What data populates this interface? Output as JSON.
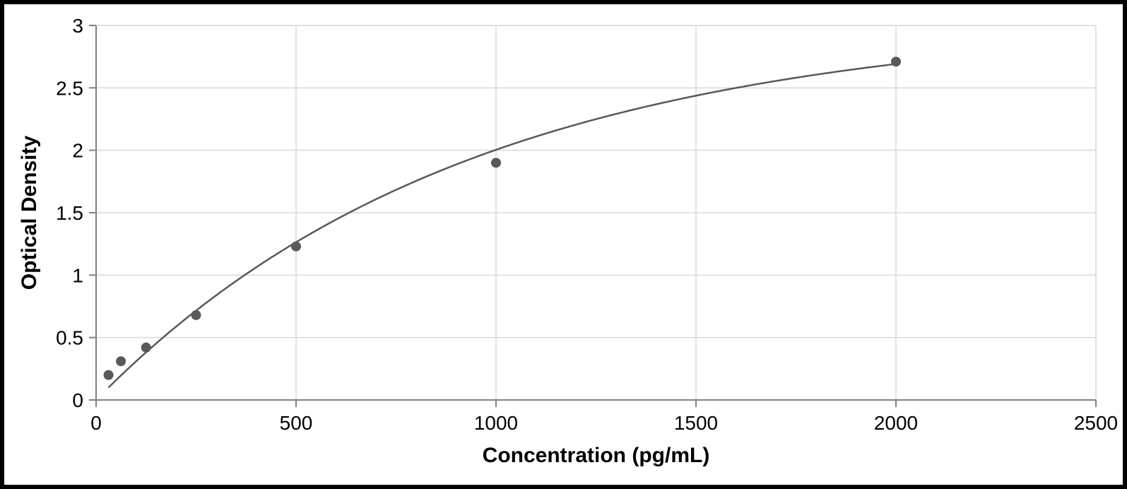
{
  "chart": {
    "type": "scatter-with-curve",
    "ylabel": "Optical Density",
    "xlabel": "Concentration (pg/mL)",
    "label_fontsize": 30,
    "label_fontweight": "bold",
    "label_color": "#000000",
    "tick_fontsize": 28,
    "tick_color": "#000000",
    "xlim": [
      0,
      2500
    ],
    "ylim": [
      0,
      3
    ],
    "xtick_step": 500,
    "ytick_step": 0.5,
    "xticks": [
      0,
      500,
      1000,
      1500,
      2000,
      2500
    ],
    "yticks": [
      0,
      0.5,
      1,
      1.5,
      2,
      2.5,
      3
    ],
    "background_color": "#ffffff",
    "grid_color": "#d9d9d9",
    "grid_width": 1.5,
    "axis_color": "#808080",
    "axis_width": 2,
    "marker_color": "#595959",
    "marker_radius": 7,
    "line_color": "#595959",
    "line_width": 2.5,
    "points": [
      {
        "x": 31,
        "y": 0.2
      },
      {
        "x": 62,
        "y": 0.31
      },
      {
        "x": 125,
        "y": 0.42
      },
      {
        "x": 250,
        "y": 0.68
      },
      {
        "x": 500,
        "y": 1.23
      },
      {
        "x": 1000,
        "y": 1.9
      },
      {
        "x": 2000,
        "y": 2.71
      }
    ],
    "curve_saturation_a": 3.05,
    "curve_saturation_k": 0.00107
  }
}
